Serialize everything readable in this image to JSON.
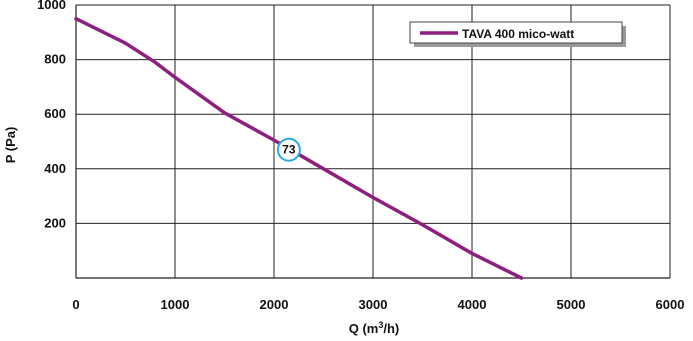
{
  "chart_data": {
    "type": "line",
    "xlabel_main": "Q (m",
    "xlabel_sup": "3",
    "xlabel_tail": "/h)",
    "ylabel": "P (Pa)",
    "xlim": [
      0,
      6000
    ],
    "ylim": [
      0,
      1000
    ],
    "x_ticks": [
      0,
      1000,
      2000,
      3000,
      4000,
      5000,
      6000
    ],
    "x_tick_labels": [
      "0",
      "1000",
      "2000",
      "3000",
      "4000",
      "5000",
      "6000"
    ],
    "y_ticks": [
      200,
      400,
      600,
      800,
      1000
    ],
    "y_tick_labels": [
      "200",
      "400",
      "600",
      "800",
      "1000"
    ],
    "grid": true,
    "legend_position": "top-right",
    "series": [
      {
        "name": "TAVA 400 mico-watt",
        "color": "#8e1f7e",
        "x": [
          0,
          500,
          800,
          1000,
          1500,
          2000,
          2500,
          3000,
          3500,
          4000,
          4500
        ],
        "y": [
          950,
          860,
          790,
          735,
          605,
          505,
          400,
          295,
          195,
          90,
          0
        ]
      }
    ],
    "annotations": [
      {
        "label": "73",
        "x": 2150,
        "y": 470,
        "color": "#29a9e0"
      }
    ]
  }
}
